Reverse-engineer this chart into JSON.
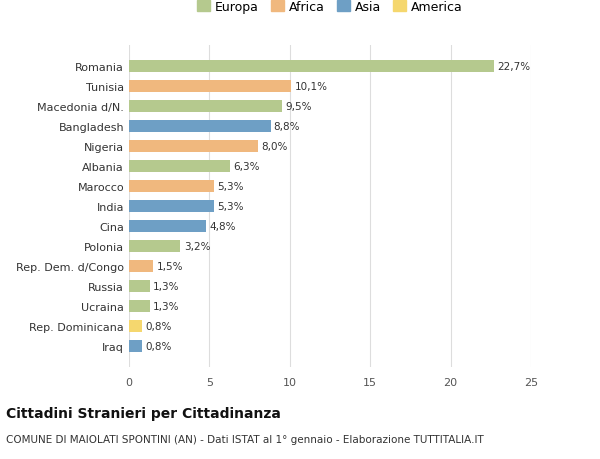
{
  "categories": [
    "Iraq",
    "Rep. Dominicana",
    "Ucraina",
    "Russia",
    "Rep. Dem. d/Congo",
    "Polonia",
    "Cina",
    "India",
    "Marocco",
    "Albania",
    "Nigeria",
    "Bangladesh",
    "Macedonia d/N.",
    "Tunisia",
    "Romania"
  ],
  "values": [
    0.8,
    0.8,
    1.3,
    1.3,
    1.5,
    3.2,
    4.8,
    5.3,
    5.3,
    6.3,
    8.0,
    8.8,
    9.5,
    10.1,
    22.7
  ],
  "labels": [
    "0,8%",
    "0,8%",
    "1,3%",
    "1,3%",
    "1,5%",
    "3,2%",
    "4,8%",
    "5,3%",
    "5,3%",
    "6,3%",
    "8,0%",
    "8,8%",
    "9,5%",
    "10,1%",
    "22,7%"
  ],
  "regions": [
    "Asia",
    "America",
    "Europa",
    "Europa",
    "Africa",
    "Europa",
    "Asia",
    "Asia",
    "Africa",
    "Europa",
    "Africa",
    "Asia",
    "Europa",
    "Africa",
    "Europa"
  ],
  "colors": {
    "Europa": "#b5c98e",
    "Africa": "#f0b87e",
    "Asia": "#6e9fc5",
    "America": "#f5d76e"
  },
  "legend_order": [
    "Europa",
    "Africa",
    "Asia",
    "America"
  ],
  "title": "Cittadini Stranieri per Cittadinanza",
  "subtitle": "COMUNE DI MAIOLATI SPONTINI (AN) - Dati ISTAT al 1° gennaio - Elaborazione TUTTITALIA.IT",
  "xlim": [
    0,
    25
  ],
  "xticks": [
    0,
    5,
    10,
    15,
    20,
    25
  ],
  "background_color": "#ffffff",
  "grid_color": "#dddddd",
  "bar_height": 0.6,
  "title_fontsize": 10,
  "subtitle_fontsize": 7.5,
  "label_fontsize": 7.5,
  "tick_fontsize": 8,
  "legend_fontsize": 9
}
